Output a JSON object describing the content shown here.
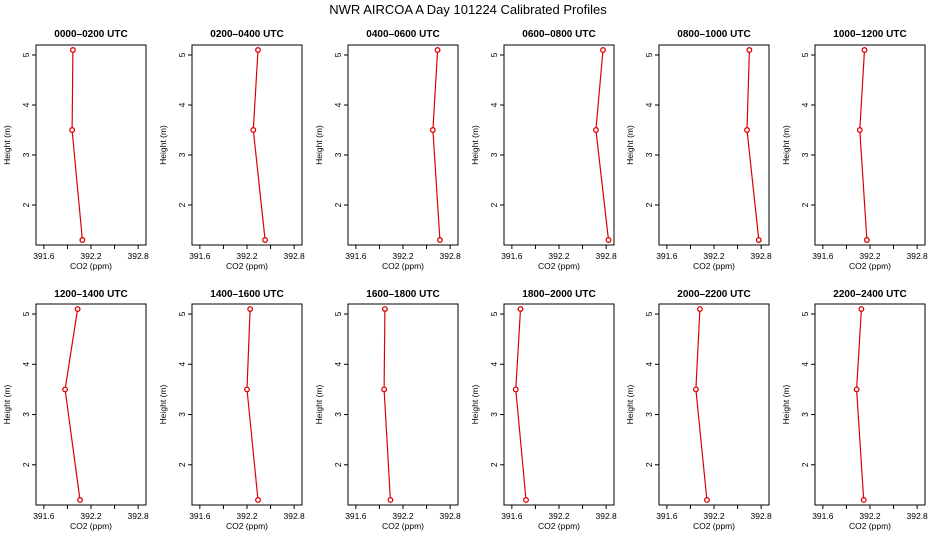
{
  "figure": {
    "title": "NWR AIRCOA A  Day 101224  Calibrated Profiles"
  },
  "colors": {
    "series": "#dd0000",
    "axis": "#000000",
    "background": "#ffffff"
  },
  "chart_data": [
    {
      "type": "line",
      "title": "0000–0200 UTC",
      "xlabel": "CO2 (ppm)",
      "ylabel": "Height (m)",
      "xlim": [
        391.5,
        392.9
      ],
      "ylim": [
        1.2,
        5.2
      ],
      "xticks": [
        "391.6",
        "392.2",
        "392.8"
      ],
      "yticks": [
        "2",
        "3",
        "4",
        "5"
      ],
      "x": [
        391.97,
        391.96,
        392.09
      ],
      "y": [
        5.1,
        3.5,
        1.3
      ]
    },
    {
      "type": "line",
      "title": "0200–0400 UTC",
      "xlabel": "CO2 (ppm)",
      "ylabel": "Height (m)",
      "xlim": [
        391.5,
        392.9
      ],
      "ylim": [
        1.2,
        5.2
      ],
      "xticks": [
        "391.6",
        "392.2",
        "392.8"
      ],
      "yticks": [
        "2",
        "3",
        "4",
        "5"
      ],
      "x": [
        392.34,
        392.28,
        392.43
      ],
      "y": [
        5.1,
        3.5,
        1.3
      ]
    },
    {
      "type": "line",
      "title": "0400–0600 UTC",
      "xlabel": "CO2 (ppm)",
      "ylabel": "Height (m)",
      "xlim": [
        391.5,
        392.9
      ],
      "ylim": [
        1.2,
        5.2
      ],
      "xticks": [
        "391.6",
        "392.2",
        "392.8"
      ],
      "yticks": [
        "2",
        "3",
        "4",
        "5"
      ],
      "x": [
        392.64,
        392.58,
        392.67
      ],
      "y": [
        5.1,
        3.5,
        1.3
      ]
    },
    {
      "type": "line",
      "title": "0600–0800 UTC",
      "xlabel": "CO2 (ppm)",
      "ylabel": "Height (m)",
      "xlim": [
        391.5,
        392.9
      ],
      "ylim": [
        1.2,
        5.2
      ],
      "xticks": [
        "391.6",
        "392.2",
        "392.8"
      ],
      "yticks": [
        "2",
        "3",
        "4",
        "5"
      ],
      "x": [
        392.76,
        392.67,
        392.83
      ],
      "y": [
        5.1,
        3.5,
        1.3
      ]
    },
    {
      "type": "line",
      "title": "0800–1000 UTC",
      "xlabel": "CO2 (ppm)",
      "ylabel": "Height (m)",
      "xlim": [
        391.5,
        392.9
      ],
      "ylim": [
        1.2,
        5.2
      ],
      "xticks": [
        "391.6",
        "392.2",
        "392.8"
      ],
      "yticks": [
        "2",
        "3",
        "4",
        "5"
      ],
      "x": [
        392.65,
        392.62,
        392.77
      ],
      "y": [
        5.1,
        3.5,
        1.3
      ]
    },
    {
      "type": "line",
      "title": "1000–1200 UTC",
      "xlabel": "CO2 (ppm)",
      "ylabel": "Height (m)",
      "xlim": [
        391.5,
        392.9
      ],
      "ylim": [
        1.2,
        5.2
      ],
      "xticks": [
        "391.6",
        "392.2",
        "392.8"
      ],
      "yticks": [
        "2",
        "3",
        "4",
        "5"
      ],
      "x": [
        392.13,
        392.07,
        392.16
      ],
      "y": [
        5.1,
        3.5,
        1.3
      ]
    },
    {
      "type": "line",
      "title": "1200–1400 UTC",
      "xlabel": "CO2 (ppm)",
      "ylabel": "Height (m)",
      "xlim": [
        391.5,
        392.9
      ],
      "ylim": [
        1.2,
        5.2
      ],
      "xticks": [
        "391.6",
        "392.2",
        "392.8"
      ],
      "yticks": [
        "2",
        "3",
        "4",
        "5"
      ],
      "x": [
        392.03,
        391.87,
        392.06
      ],
      "y": [
        5.1,
        3.5,
        1.3
      ]
    },
    {
      "type": "line",
      "title": "1400–1600 UTC",
      "xlabel": "CO2 (ppm)",
      "ylabel": "Height (m)",
      "xlim": [
        391.5,
        392.9
      ],
      "ylim": [
        1.2,
        5.2
      ],
      "xticks": [
        "391.6",
        "392.2",
        "392.8"
      ],
      "yticks": [
        "2",
        "3",
        "4",
        "5"
      ],
      "x": [
        392.24,
        392.2,
        392.34
      ],
      "y": [
        5.1,
        3.5,
        1.3
      ]
    },
    {
      "type": "line",
      "title": "1600–1800 UTC",
      "xlabel": "CO2 (ppm)",
      "ylabel": "Height (m)",
      "xlim": [
        391.5,
        392.9
      ],
      "ylim": [
        1.2,
        5.2
      ],
      "xticks": [
        "391.6",
        "392.2",
        "392.8"
      ],
      "yticks": [
        "2",
        "3",
        "4",
        "5"
      ],
      "x": [
        391.97,
        391.96,
        392.04
      ],
      "y": [
        5.1,
        3.5,
        1.3
      ]
    },
    {
      "type": "line",
      "title": "1800–2000 UTC",
      "xlabel": "CO2 (ppm)",
      "ylabel": "Height (m)",
      "xlim": [
        391.5,
        392.9
      ],
      "ylim": [
        1.2,
        5.2
      ],
      "xticks": [
        "391.6",
        "392.2",
        "392.8"
      ],
      "yticks": [
        "2",
        "3",
        "4",
        "5"
      ],
      "x": [
        391.71,
        391.65,
        391.78
      ],
      "y": [
        5.1,
        3.5,
        1.3
      ]
    },
    {
      "type": "line",
      "title": "2000–2200 UTC",
      "xlabel": "CO2 (ppm)",
      "ylabel": "Height (m)",
      "xlim": [
        391.5,
        392.9
      ],
      "ylim": [
        1.2,
        5.2
      ],
      "xticks": [
        "391.6",
        "392.2",
        "392.8"
      ],
      "yticks": [
        "2",
        "3",
        "4",
        "5"
      ],
      "x": [
        392.02,
        391.97,
        392.11
      ],
      "y": [
        5.1,
        3.5,
        1.3
      ]
    },
    {
      "type": "line",
      "title": "2200–2400 UTC",
      "xlabel": "CO2 (ppm)",
      "ylabel": "Height (m)",
      "xlim": [
        391.5,
        392.9
      ],
      "ylim": [
        1.2,
        5.2
      ],
      "xticks": [
        "391.6",
        "392.2",
        "392.8"
      ],
      "yticks": [
        "2",
        "3",
        "4",
        "5"
      ],
      "x": [
        392.09,
        392.03,
        392.12
      ],
      "y": [
        5.1,
        3.5,
        1.3
      ]
    }
  ]
}
